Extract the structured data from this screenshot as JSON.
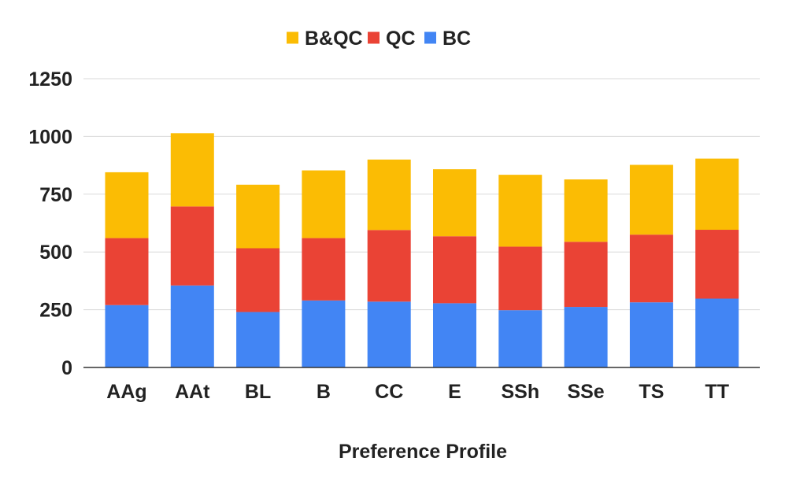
{
  "chart_data": {
    "type": "bar",
    "stacked": true,
    "title": "",
    "xlabel": "Preference Profile",
    "ylabel": "",
    "ylim": [
      0,
      1250
    ],
    "yticks": [
      0,
      250,
      500,
      750,
      1000,
      1250
    ],
    "grid": true,
    "legend_position": "top-center",
    "categories": [
      "AAg",
      "AAt",
      "BL",
      "B",
      "CC",
      "E",
      "SSh",
      "SSe",
      "TS",
      "TT"
    ],
    "series": [
      {
        "name": "BC",
        "color": "#4285F4",
        "values": [
          270,
          355,
          240,
          290,
          285,
          278,
          248,
          262,
          282,
          298
        ]
      },
      {
        "name": "QC",
        "color": "#EA4335",
        "values": [
          290,
          342,
          276,
          270,
          310,
          290,
          275,
          282,
          293,
          298
        ]
      },
      {
        "name": "B&QC",
        "color": "#FBBC04",
        "values": [
          285,
          317,
          275,
          293,
          305,
          290,
          311,
          270,
          302,
          308
        ]
      }
    ],
    "legend_order": [
      "B&QC",
      "QC",
      "BC"
    ]
  }
}
